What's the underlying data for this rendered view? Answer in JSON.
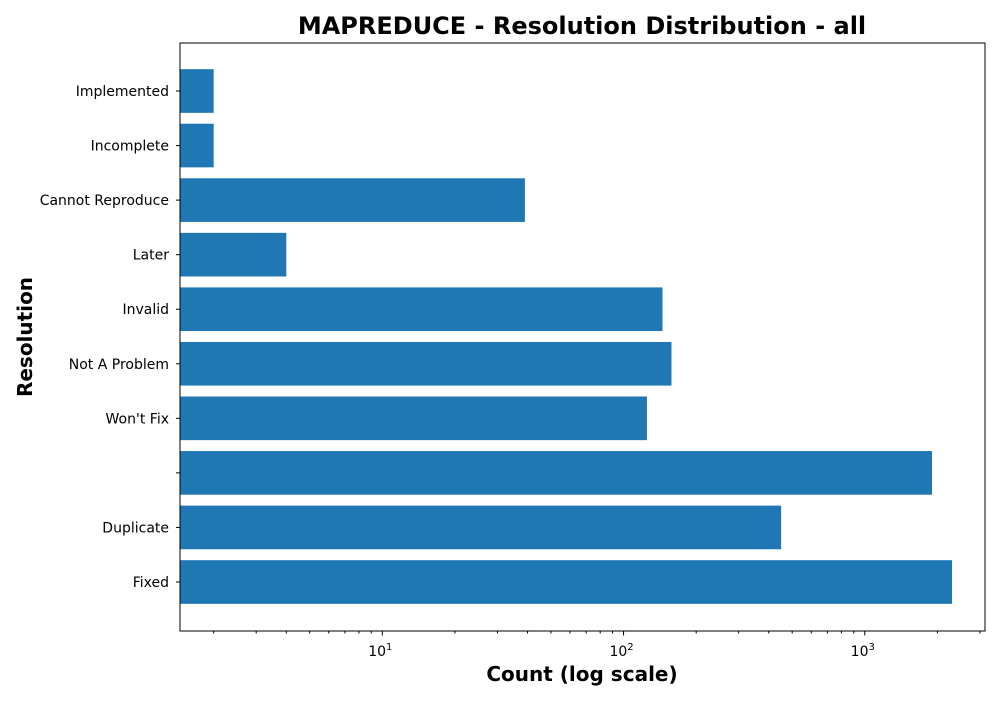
{
  "chart_data": {
    "type": "bar",
    "orientation": "horizontal",
    "title": "MAPREDUCE - Resolution Distribution - all",
    "xlabel": "Count (log scale)",
    "ylabel": "Resolution",
    "xscale": "log",
    "xlim": [
      1.45,
      3150
    ],
    "categories": [
      "Fixed",
      "Duplicate",
      "",
      "Won't Fix",
      "Not A Problem",
      "Invalid",
      "Later",
      "Cannot Reproduce",
      "Incomplete",
      "Implemented"
    ],
    "values": [
      2300,
      450,
      1900,
      125,
      158,
      145,
      4,
      39,
      2,
      2
    ],
    "x_ticks": [
      {
        "value": 10,
        "base": "10",
        "exp": "1"
      },
      {
        "value": 100,
        "base": "10",
        "exp": "2"
      },
      {
        "value": 1000,
        "base": "10",
        "exp": "3"
      }
    ],
    "bar_color": "#1f77b4",
    "grid": false,
    "legend": "none"
  }
}
